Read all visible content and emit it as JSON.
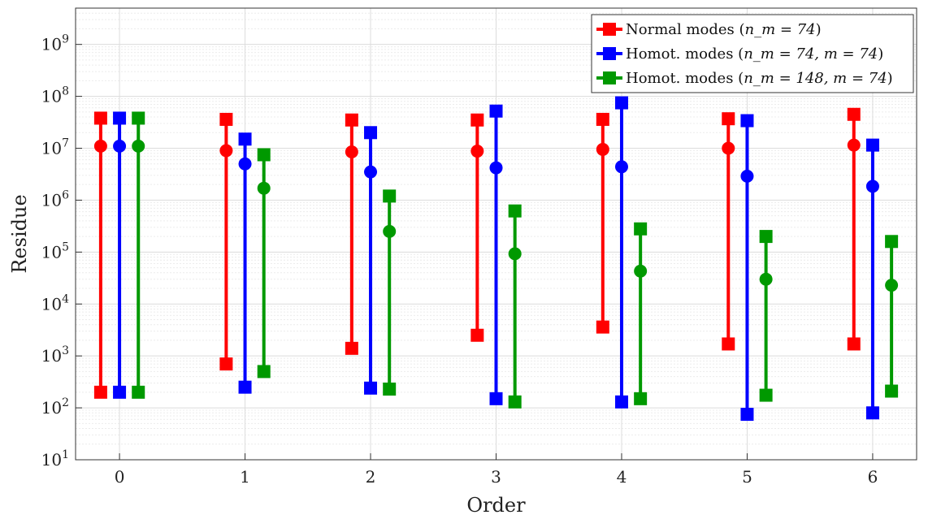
{
  "chart_data": {
    "type": "errorbar-range",
    "xlabel": "Order",
    "ylabel": "Residue",
    "yscale": "log",
    "ylim": [
      10,
      5000000000.0
    ],
    "xlim": [
      -0.35,
      6.35
    ],
    "categories": [
      "0",
      "1",
      "2",
      "3",
      "4",
      "5",
      "6"
    ],
    "grid": true,
    "legend_position": "top-right",
    "series": [
      {
        "name_prefix": "Normal modes (",
        "name_math": "n_m = 74",
        "name_suffix": ")",
        "color": "#ff0000",
        "offset": -0.15,
        "min": [
          200,
          700,
          1400,
          2500,
          3600,
          1700,
          1700
        ],
        "max": [
          38000000,
          36000000,
          35000000,
          35000000,
          36000000,
          37000000,
          45000000
        ],
        "mean": [
          11000000,
          9000000,
          8500000,
          8800000,
          9500000,
          10000000,
          11500000
        ]
      },
      {
        "name_prefix": "Homot. modes (",
        "name_math": "n_m = 74, m = 74",
        "name_suffix": ")",
        "color": "#0000ff",
        "offset": 0,
        "min": [
          200,
          250,
          240,
          150,
          130,
          75,
          80
        ],
        "max": [
          38000000,
          15000000,
          20000000,
          52000000,
          75000000,
          34000000,
          11500000
        ],
        "mean": [
          11000000,
          5000000,
          3500000,
          4200000,
          4400000,
          2900000,
          1850000
        ]
      },
      {
        "name_prefix": "Homot. modes (",
        "name_math": "n_m = 148, m = 74",
        "name_suffix": ")",
        "color": "#009900",
        "offset": 0.15,
        "min": [
          200,
          500,
          230,
          130,
          150,
          175,
          210
        ],
        "max": [
          38000000,
          7500000,
          1200000,
          620000,
          280000,
          200000,
          160000
        ],
        "mean": [
          11000000,
          1700000,
          250000,
          93000,
          43000,
          30000,
          23000
        ]
      }
    ],
    "y_ticks": [
      {
        "base": "10",
        "exp": "1"
      },
      {
        "base": "10",
        "exp": "2"
      },
      {
        "base": "10",
        "exp": "3"
      },
      {
        "base": "10",
        "exp": "4"
      },
      {
        "base": "10",
        "exp": "5"
      },
      {
        "base": "10",
        "exp": "6"
      },
      {
        "base": "10",
        "exp": "7"
      },
      {
        "base": "10",
        "exp": "8"
      },
      {
        "base": "10",
        "exp": "9"
      }
    ]
  }
}
